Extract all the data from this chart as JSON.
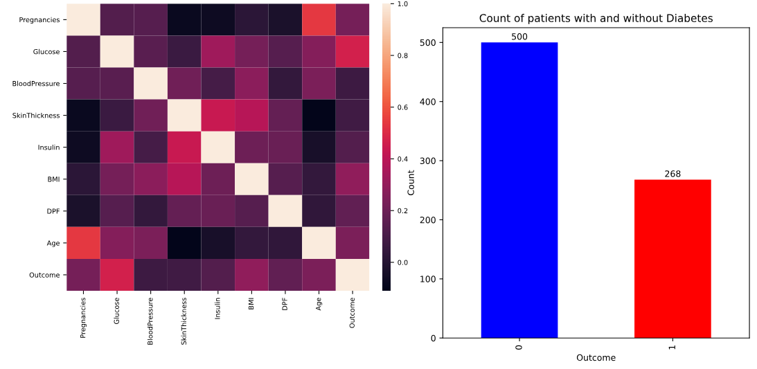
{
  "chart_data": [
    {
      "type": "heatmap",
      "categories": [
        "Pregnancies",
        "Glucose",
        "BloodPressure",
        "SkinThickness",
        "Insulin",
        "BMI",
        "DPF",
        "Age",
        "Outcome"
      ],
      "y_categories": [
        "Pregnancies",
        "Glucose",
        "BloodPressure",
        "SkinThickness",
        "Insulin",
        "BMI",
        "DPF",
        "Age",
        "Outcome"
      ],
      "cells": [
        [
          1.0,
          0.13,
          0.14,
          -0.08,
          -0.07,
          0.02,
          -0.03,
          0.54,
          0.22
        ],
        [
          0.13,
          1.0,
          0.15,
          0.06,
          0.33,
          0.22,
          0.14,
          0.26,
          0.47
        ],
        [
          0.14,
          0.15,
          1.0,
          0.21,
          0.09,
          0.28,
          0.04,
          0.24,
          0.07
        ],
        [
          -0.08,
          0.06,
          0.21,
          1.0,
          0.44,
          0.39,
          0.18,
          -0.11,
          0.08
        ],
        [
          -0.07,
          0.33,
          0.09,
          0.44,
          1.0,
          0.2,
          0.19,
          -0.04,
          0.13
        ],
        [
          0.02,
          0.22,
          0.28,
          0.39,
          0.2,
          1.0,
          0.14,
          0.04,
          0.29
        ],
        [
          -0.03,
          0.14,
          0.04,
          0.18,
          0.19,
          0.14,
          1.0,
          0.03,
          0.17
        ],
        [
          0.54,
          0.26,
          0.24,
          -0.11,
          -0.04,
          0.04,
          0.03,
          1.0,
          0.24
        ],
        [
          0.22,
          0.47,
          0.07,
          0.08,
          0.13,
          0.29,
          0.17,
          0.24,
          1.0
        ]
      ],
      "clim": [
        -0.11,
        1.0
      ],
      "cticks": [
        {
          "value": 0,
          "label": "0.0"
        },
        {
          "value": 0.2,
          "label": "0.2"
        },
        {
          "value": 0.4,
          "label": "0.4"
        },
        {
          "value": 0.6,
          "label": "0.6"
        },
        {
          "value": 0.8,
          "label": "0.8"
        },
        {
          "value": 1,
          "label": "1.0"
        }
      ]
    },
    {
      "type": "bar",
      "title": "Count of patients with and without Diabetes",
      "xlabel": "Outcome",
      "ylabel": "Count",
      "categories": [
        "0",
        "1"
      ],
      "values": [
        500,
        268
      ],
      "colors": [
        "#0000ff",
        "#ff0000"
      ],
      "ylim": [
        0,
        525
      ],
      "yticks": [
        0,
        100,
        200,
        300,
        400,
        500
      ],
      "data_labels": true
    }
  ]
}
